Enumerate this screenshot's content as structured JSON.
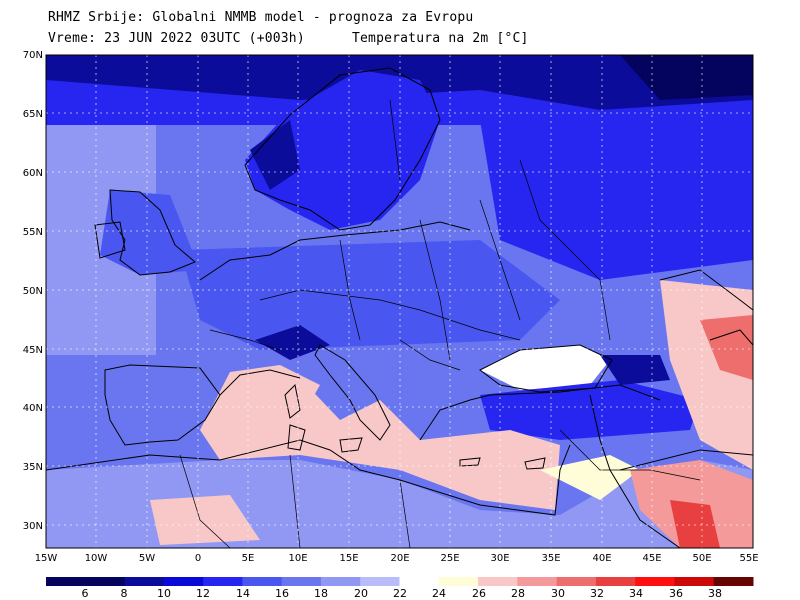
{
  "header": {
    "line1": "RHMZ Srbije: Globalni NMMB model - prognoza za Evropu",
    "line2": "Vreme: 23 JUN 2022 03UTC (+003h)",
    "field": "Temperatura na 2m [°C]"
  },
  "lat_labels": [
    "70N",
    "65N",
    "60N",
    "55N",
    "50N",
    "45N",
    "40N",
    "35N",
    "30N"
  ],
  "lon_labels": [
    "15W",
    "10W",
    "5W",
    "0",
    "5E",
    "10E",
    "15E",
    "20E",
    "25E",
    "30E",
    "35E",
    "40E",
    "45E",
    "50E",
    "55E"
  ],
  "colorbar": {
    "labels": [
      "6",
      "8",
      "10",
      "12",
      "14",
      "16",
      "18",
      "20",
      "22",
      "24",
      "26",
      "28",
      "30",
      "32",
      "34",
      "36",
      "38"
    ],
    "colors": [
      "#04045e",
      "#0c0c9a",
      "#0a0ad8",
      "#2626f0",
      "#4a56f0",
      "#6a76f0",
      "#9098f4",
      "#b8bcf8",
      "#ffffff",
      "#fffcd8",
      "#f8c8c8",
      "#f49a9a",
      "#ee6e6e",
      "#e84040",
      "#ff1010",
      "#cc0808",
      "#660404"
    ]
  },
  "colors": {
    "cold": "#0a0ad8",
    "sea": "#f8c8c8",
    "warm": "#ee6e6e"
  }
}
